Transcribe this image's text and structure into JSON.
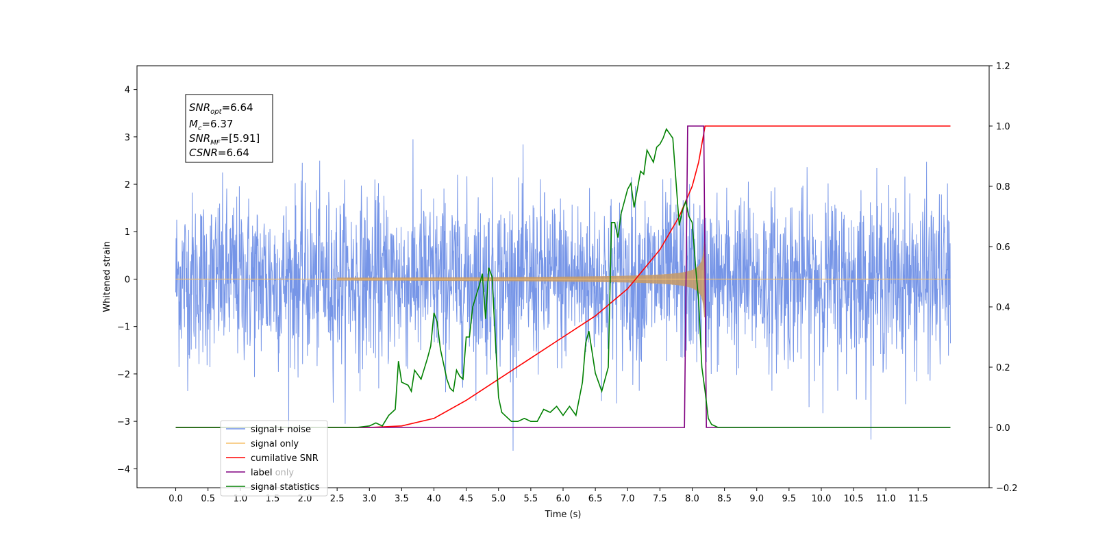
{
  "chart_data": {
    "type": "line",
    "xlabel": "Time (s)",
    "ylabel": "Whitened strain",
    "x_ticks": [
      "0.0",
      "0.5",
      "1.0",
      "1.5",
      "2.0",
      "2.5",
      "3.0",
      "3.5",
      "4.0",
      "4.5",
      "5.0",
      "5.5",
      "6.0",
      "6.5",
      "7.0",
      "7.5",
      "8.0",
      "8.5",
      "9.0",
      "9.5",
      "10.0",
      "10.5",
      "11.0",
      "11.5"
    ],
    "y_ticks": [
      "−4",
      "−3",
      "−2",
      "−1",
      "0",
      "1",
      "2",
      "3",
      "4"
    ],
    "y2_ticks": [
      "−0.2",
      "0.0",
      "0.2",
      "0.4",
      "0.6",
      "0.8",
      "1.0",
      "1.2"
    ],
    "xlim": [
      -0.6,
      12.6
    ],
    "ylim": [
      -4.4,
      4.5
    ],
    "y2lim": [
      -0.2,
      1.2
    ],
    "grid": false,
    "legend_position": "lower-left",
    "annotation": [
      {
        "main": "SNR",
        "sub": "opt",
        "rest": "=6.64"
      },
      {
        "main": "M",
        "sub": "c",
        "rest": "=6.37"
      },
      {
        "main": "SNR",
        "sub": "MF",
        "rest": "=[5.91]"
      },
      {
        "main": "CSNR",
        "sub": "",
        "rest": "=6.64"
      }
    ],
    "series": [
      {
        "name": "signal+ noise",
        "color": "#6f8fe6",
        "axis": "left",
        "kind": "noise",
        "x_range": [
          0.0,
          12.0
        ],
        "band": [
          -2.0,
          2.0
        ],
        "extremes": [
          -3.7,
          4.1
        ]
      },
      {
        "name": "signal only",
        "color": "#f5c06a",
        "axis": "left",
        "kind": "chirp",
        "x_range": [
          0.0,
          8.2
        ],
        "peak_amplitude": 1.0
      },
      {
        "name": "cumilative SNR",
        "color": "#ff0000",
        "axis": "right",
        "x": [
          0.0,
          3.0,
          3.5,
          4.0,
          4.5,
          5.0,
          5.5,
          6.0,
          6.5,
          7.0,
          7.5,
          7.8,
          8.0,
          8.1,
          8.2,
          12.0
        ],
        "y": [
          0.0,
          0.0,
          0.005,
          0.03,
          0.09,
          0.16,
          0.23,
          0.3,
          0.37,
          0.46,
          0.59,
          0.7,
          0.8,
          0.88,
          1.0,
          1.0
        ]
      },
      {
        "name": "label",
        "color": "#800080",
        "axis": "right",
        "x": [
          0.0,
          7.88,
          7.93,
          8.18,
          8.22,
          12.0
        ],
        "y": [
          0.0,
          0.0,
          1.0,
          1.0,
          0.0,
          0.0
        ]
      },
      {
        "name": "label only",
        "color": "#b0b0b0",
        "axis": "right",
        "x": [],
        "y": []
      },
      {
        "name": "signal statistics",
        "color": "#008000",
        "axis": "right",
        "x": [
          0.0,
          2.8,
          3.0,
          3.1,
          3.2,
          3.3,
          3.4,
          3.45,
          3.5,
          3.6,
          3.65,
          3.7,
          3.8,
          3.9,
          3.95,
          4.0,
          4.05,
          4.1,
          4.2,
          4.25,
          4.3,
          4.35,
          4.4,
          4.45,
          4.5,
          4.55,
          4.6,
          4.7,
          4.75,
          4.8,
          4.85,
          4.9,
          4.95,
          5.0,
          5.05,
          5.1,
          5.2,
          5.3,
          5.4,
          5.5,
          5.6,
          5.7,
          5.8,
          5.9,
          6.0,
          6.1,
          6.2,
          6.3,
          6.35,
          6.4,
          6.5,
          6.6,
          6.7,
          6.75,
          6.8,
          6.85,
          6.9,
          7.0,
          7.05,
          7.1,
          7.2,
          7.25,
          7.3,
          7.35,
          7.4,
          7.45,
          7.5,
          7.55,
          7.6,
          7.7,
          7.8,
          7.85,
          7.9,
          7.95,
          8.0,
          8.05,
          8.1,
          8.15,
          8.2,
          8.25,
          8.3,
          8.4,
          8.5,
          8.6,
          8.8,
          9.0,
          12.0
        ],
        "y": [
          0.0,
          0.0,
          0.005,
          0.015,
          0.005,
          0.04,
          0.06,
          0.22,
          0.15,
          0.14,
          0.12,
          0.19,
          0.16,
          0.23,
          0.27,
          0.38,
          0.35,
          0.26,
          0.16,
          0.13,
          0.12,
          0.19,
          0.17,
          0.16,
          0.3,
          0.3,
          0.4,
          0.47,
          0.51,
          0.36,
          0.53,
          0.5,
          0.3,
          0.1,
          0.05,
          0.04,
          0.02,
          0.02,
          0.03,
          0.02,
          0.02,
          0.06,
          0.05,
          0.07,
          0.04,
          0.07,
          0.04,
          0.15,
          0.28,
          0.32,
          0.18,
          0.12,
          0.2,
          0.68,
          0.68,
          0.63,
          0.71,
          0.79,
          0.81,
          0.73,
          0.85,
          0.84,
          0.92,
          0.9,
          0.88,
          0.93,
          0.94,
          0.96,
          0.99,
          0.96,
          0.67,
          0.72,
          0.75,
          0.7,
          0.68,
          0.54,
          0.42,
          0.2,
          0.12,
          0.03,
          0.01,
          0.0,
          0.0,
          0.0,
          0.0,
          0.0,
          0.0
        ]
      }
    ]
  }
}
